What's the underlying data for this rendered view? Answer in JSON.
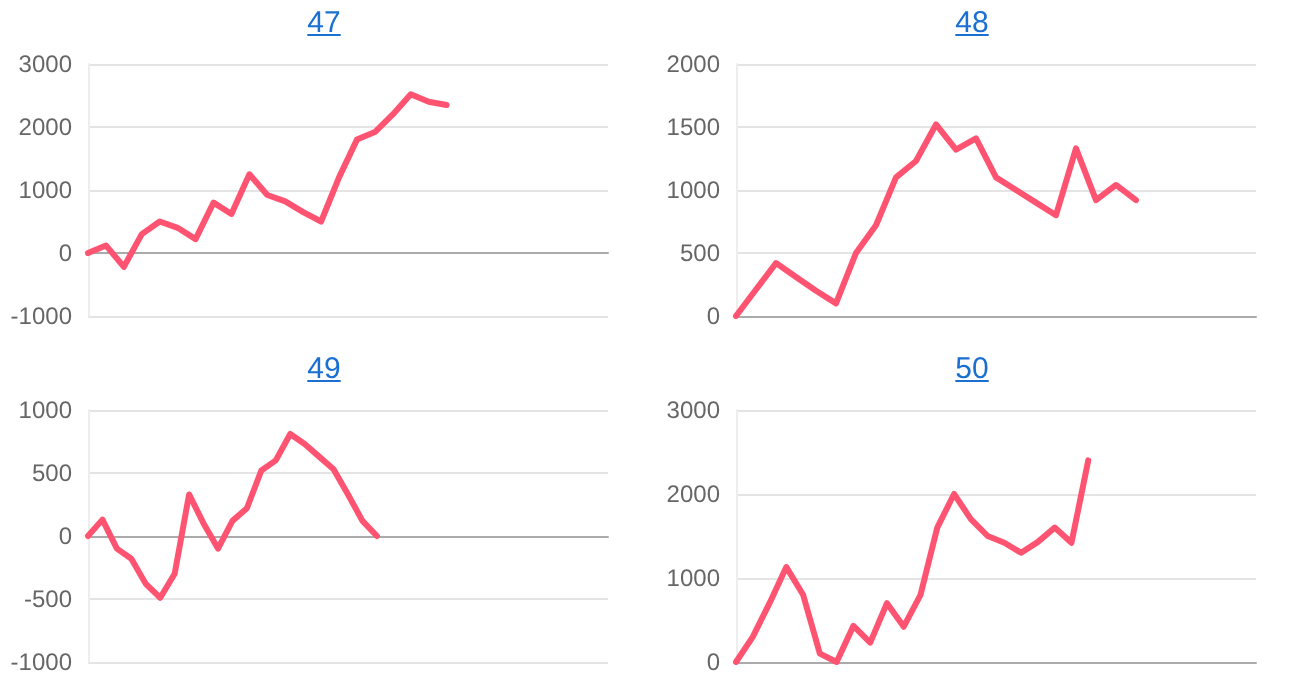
{
  "chart_data": [
    {
      "type": "line",
      "title": "47",
      "categories": [
        null,
        null,
        null,
        null,
        null,
        null,
        null,
        null,
        null,
        null,
        null,
        null,
        null,
        null,
        null,
        null,
        null,
        null,
        null,
        null,
        null,
        null,
        null,
        null,
        null,
        null,
        null,
        null,
        null,
        null
      ],
      "series": [
        {
          "color": "#ff5372",
          "values": [
            0,
            120,
            -220,
            300,
            500,
            400,
            220,
            800,
            620,
            1250,
            920,
            820,
            650,
            500,
            1200,
            1800,
            1920,
            2200,
            2520,
            2400,
            2350,
            null,
            null,
            null,
            null,
            null,
            null,
            null,
            null,
            null
          ]
        }
      ],
      "ylim": [
        -1000,
        3000
      ],
      "yticks": [
        -1000,
        0,
        1000,
        2000,
        3000
      ],
      "grid": "y",
      "tick_labels": "y",
      "marker": "none",
      "line_style": "solid"
    },
    {
      "type": "line",
      "title": "48",
      "categories": [
        null,
        null,
        null,
        null,
        null,
        null,
        null,
        null,
        null,
        null,
        null,
        null,
        null,
        null,
        null,
        null,
        null,
        null,
        null,
        null,
        null,
        null,
        null,
        null,
        null,
        null,
        null
      ],
      "series": [
        {
          "color": "#ff5372",
          "values": [
            0,
            210,
            420,
            310,
            200,
            100,
            500,
            720,
            1100,
            1230,
            1520,
            1320,
            1410,
            1100,
            1000,
            900,
            800,
            1330,
            920,
            1040,
            920,
            null,
            null,
            null,
            null,
            null,
            null
          ]
        }
      ],
      "ylim": [
        0,
        2000
      ],
      "yticks": [
        0,
        500,
        1000,
        1500,
        2000
      ],
      "grid": "y",
      "tick_labels": "y",
      "marker": "none",
      "line_style": "solid"
    },
    {
      "type": "line",
      "title": "49",
      "categories": [
        null,
        null,
        null,
        null,
        null,
        null,
        null,
        null,
        null,
        null,
        null,
        null,
        null,
        null,
        null,
        null,
        null,
        null,
        null,
        null,
        null,
        null,
        null,
        null,
        null,
        null,
        null,
        null,
        null,
        null,
        null,
        null,
        null,
        null,
        null,
        null,
        null
      ],
      "series": [
        {
          "color": "#ff5372",
          "values": [
            0,
            130,
            -100,
            -180,
            -380,
            -490,
            -300,
            330,
            100,
            -100,
            120,
            220,
            520,
            600,
            810,
            730,
            630,
            530,
            330,
            120,
            0,
            null,
            null,
            null,
            null,
            null,
            null,
            null,
            null,
            null,
            null,
            null,
            null,
            null,
            null,
            null,
            null
          ]
        }
      ],
      "ylim": [
        -1000,
        1000
      ],
      "yticks": [
        -1000,
        -500,
        0,
        500,
        1000
      ],
      "grid": "y",
      "tick_labels": "y",
      "marker": "none",
      "line_style": "solid"
    },
    {
      "type": "line",
      "title": "50",
      "categories": [
        null,
        null,
        null,
        null,
        null,
        null,
        null,
        null,
        null,
        null,
        null,
        null,
        null,
        null,
        null,
        null,
        null,
        null,
        null,
        null,
        null,
        null,
        null,
        null,
        null,
        null,
        null,
        null,
        null,
        null,
        null,
        null
      ],
      "series": [
        {
          "color": "#ff5372",
          "values": [
            0,
            300,
            700,
            1130,
            800,
            100,
            0,
            430,
            230,
            700,
            420,
            800,
            1600,
            2000,
            1700,
            1500,
            1420,
            1300,
            1430,
            1600,
            1420,
            2400,
            null,
            null,
            null,
            null,
            null,
            null,
            null,
            null,
            null,
            null
          ]
        }
      ],
      "ylim": [
        0,
        3000
      ],
      "yticks": [
        0,
        1000,
        2000,
        3000
      ],
      "grid": "y",
      "tick_labels": "y",
      "marker": "none",
      "line_style": "solid"
    }
  ]
}
